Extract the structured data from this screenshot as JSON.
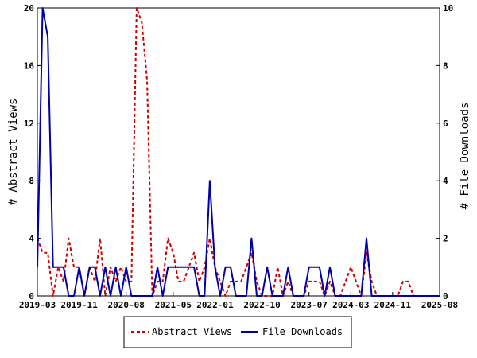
{
  "chart_data": {
    "type": "line",
    "title": "",
    "xlabel": "",
    "ylabel_left": "# Abstract Views",
    "ylabel_right": "# File Downloads",
    "x_ticks": [
      "2019-03",
      "2019-11",
      "2020-08",
      "2021-05",
      "2022-01",
      "2022-10",
      "2023-07",
      "2024-03",
      "2024-11",
      "2025-08"
    ],
    "y_left_ticks": [
      "0",
      "4",
      "8",
      "12",
      "16",
      "20"
    ],
    "y_right_ticks": [
      "0",
      "2",
      "4",
      "6",
      "8",
      "10"
    ],
    "ylim_left": [
      0,
      20
    ],
    "ylim_right": [
      0,
      10
    ],
    "grid": false,
    "legend_position": "bottom",
    "series": [
      {
        "name": "Abstract Views",
        "axis": "left",
        "color": "#cc0000",
        "dash": "dashed",
        "points": [
          [
            "2019-03",
            4
          ],
          [
            "2019-04",
            3
          ],
          [
            "2019-05",
            3
          ],
          [
            "2019-06",
            0
          ],
          [
            "2019-07",
            2
          ],
          [
            "2019-08",
            1
          ],
          [
            "2019-09",
            4
          ],
          [
            "2019-10",
            2
          ],
          [
            "2019-11",
            2
          ],
          [
            "2019-12",
            0
          ],
          [
            "2020-01",
            2
          ],
          [
            "2020-02",
            1
          ],
          [
            "2020-03",
            4
          ],
          [
            "2020-04",
            0
          ],
          [
            "2020-05",
            2
          ],
          [
            "2020-06",
            1
          ],
          [
            "2020-07",
            2
          ],
          [
            "2020-08",
            1
          ],
          [
            "2020-09",
            1
          ],
          [
            "2020-10",
            20
          ],
          [
            "2020-11",
            19
          ],
          [
            "2020-12",
            15
          ],
          [
            "2021-01",
            0
          ],
          [
            "2021-02",
            1
          ],
          [
            "2021-03",
            1
          ],
          [
            "2021-04",
            4
          ],
          [
            "2021-05",
            3
          ],
          [
            "2021-06",
            1
          ],
          [
            "2021-07",
            1
          ],
          [
            "2021-08",
            2
          ],
          [
            "2021-09",
            3
          ],
          [
            "2021-10",
            1
          ],
          [
            "2021-11",
            2
          ],
          [
            "2021-12",
            4
          ],
          [
            "2022-01",
            2
          ],
          [
            "2022-02",
            1
          ],
          [
            "2022-03",
            0
          ],
          [
            "2022-04",
            1
          ],
          [
            "2022-05",
            1
          ],
          [
            "2022-06",
            1
          ],
          [
            "2022-07",
            2
          ],
          [
            "2022-08",
            3
          ],
          [
            "2022-09",
            1
          ],
          [
            "2022-10",
            0
          ],
          [
            "2022-11",
            0
          ],
          [
            "2022-12",
            0
          ],
          [
            "2023-01",
            2
          ],
          [
            "2023-02",
            0
          ],
          [
            "2023-03",
            1
          ],
          [
            "2023-04",
            0
          ],
          [
            "2023-05",
            0
          ],
          [
            "2023-06",
            0
          ],
          [
            "2023-07",
            1
          ],
          [
            "2023-08",
            1
          ],
          [
            "2023-09",
            1
          ],
          [
            "2023-10",
            0
          ],
          [
            "2023-11",
            1
          ],
          [
            "2023-12",
            0
          ],
          [
            "2024-01",
            0
          ],
          [
            "2024-02",
            1
          ],
          [
            "2024-03",
            2
          ],
          [
            "2024-04",
            1
          ],
          [
            "2024-05",
            0
          ],
          [
            "2024-06",
            3
          ],
          [
            "2024-07",
            1
          ],
          [
            "2024-08",
            0
          ],
          [
            "2024-09",
            0
          ],
          [
            "2024-10",
            0
          ],
          [
            "2024-11",
            0
          ],
          [
            "2024-12",
            0
          ],
          [
            "2025-01",
            1
          ],
          [
            "2025-02",
            1
          ],
          [
            "2025-03",
            0
          ],
          [
            "2025-04",
            0
          ],
          [
            "2025-05",
            0
          ],
          [
            "2025-06",
            0
          ],
          [
            "2025-07",
            0
          ],
          [
            "2025-08",
            0
          ]
        ]
      },
      {
        "name": "File Downloads",
        "axis": "right",
        "color": "#0000aa",
        "dash": "solid",
        "points": [
          [
            "2019-03",
            1
          ],
          [
            "2019-04",
            10
          ],
          [
            "2019-05",
            9
          ],
          [
            "2019-06",
            1
          ],
          [
            "2019-07",
            1
          ],
          [
            "2019-08",
            1
          ],
          [
            "2019-09",
            0
          ],
          [
            "2019-10",
            0
          ],
          [
            "2019-11",
            1
          ],
          [
            "2019-12",
            0
          ],
          [
            "2020-01",
            1
          ],
          [
            "2020-02",
            1
          ],
          [
            "2020-03",
            0
          ],
          [
            "2020-04",
            1
          ],
          [
            "2020-05",
            0
          ],
          [
            "2020-06",
            1
          ],
          [
            "2020-07",
            0
          ],
          [
            "2020-08",
            1
          ],
          [
            "2020-09",
            0
          ],
          [
            "2020-10",
            0
          ],
          [
            "2020-11",
            0
          ],
          [
            "2020-12",
            0
          ],
          [
            "2021-01",
            0
          ],
          [
            "2021-02",
            1
          ],
          [
            "2021-03",
            0
          ],
          [
            "2021-04",
            1
          ],
          [
            "2021-05",
            1
          ],
          [
            "2021-06",
            1
          ],
          [
            "2021-07",
            1
          ],
          [
            "2021-08",
            1
          ],
          [
            "2021-09",
            1
          ],
          [
            "2021-10",
            0
          ],
          [
            "2021-11",
            0
          ],
          [
            "2021-12",
            4
          ],
          [
            "2022-01",
            1
          ],
          [
            "2022-02",
            0
          ],
          [
            "2022-03",
            1
          ],
          [
            "2022-04",
            1
          ],
          [
            "2022-05",
            0
          ],
          [
            "2022-06",
            0
          ],
          [
            "2022-07",
            0
          ],
          [
            "2022-08",
            2
          ],
          [
            "2022-09",
            0
          ],
          [
            "2022-10",
            0
          ],
          [
            "2022-11",
            1
          ],
          [
            "2022-12",
            0
          ],
          [
            "2023-01",
            0
          ],
          [
            "2023-02",
            0
          ],
          [
            "2023-03",
            1
          ],
          [
            "2023-04",
            0
          ],
          [
            "2023-05",
            0
          ],
          [
            "2023-06",
            0
          ],
          [
            "2023-07",
            1
          ],
          [
            "2023-08",
            1
          ],
          [
            "2023-09",
            1
          ],
          [
            "2023-10",
            0
          ],
          [
            "2023-11",
            1
          ],
          [
            "2023-12",
            0
          ],
          [
            "2024-01",
            0
          ],
          [
            "2024-02",
            0
          ],
          [
            "2024-03",
            0
          ],
          [
            "2024-04",
            0
          ],
          [
            "2024-05",
            0
          ],
          [
            "2024-06",
            2
          ],
          [
            "2024-07",
            0
          ],
          [
            "2024-08",
            0
          ],
          [
            "2024-09",
            0
          ],
          [
            "2024-10",
            0
          ],
          [
            "2024-11",
            0
          ],
          [
            "2024-12",
            0
          ],
          [
            "2025-01",
            0
          ],
          [
            "2025-02",
            0
          ],
          [
            "2025-03",
            0
          ],
          [
            "2025-04",
            0
          ],
          [
            "2025-05",
            0
          ],
          [
            "2025-06",
            0
          ],
          [
            "2025-07",
            0
          ],
          [
            "2025-08",
            0
          ]
        ]
      }
    ]
  }
}
